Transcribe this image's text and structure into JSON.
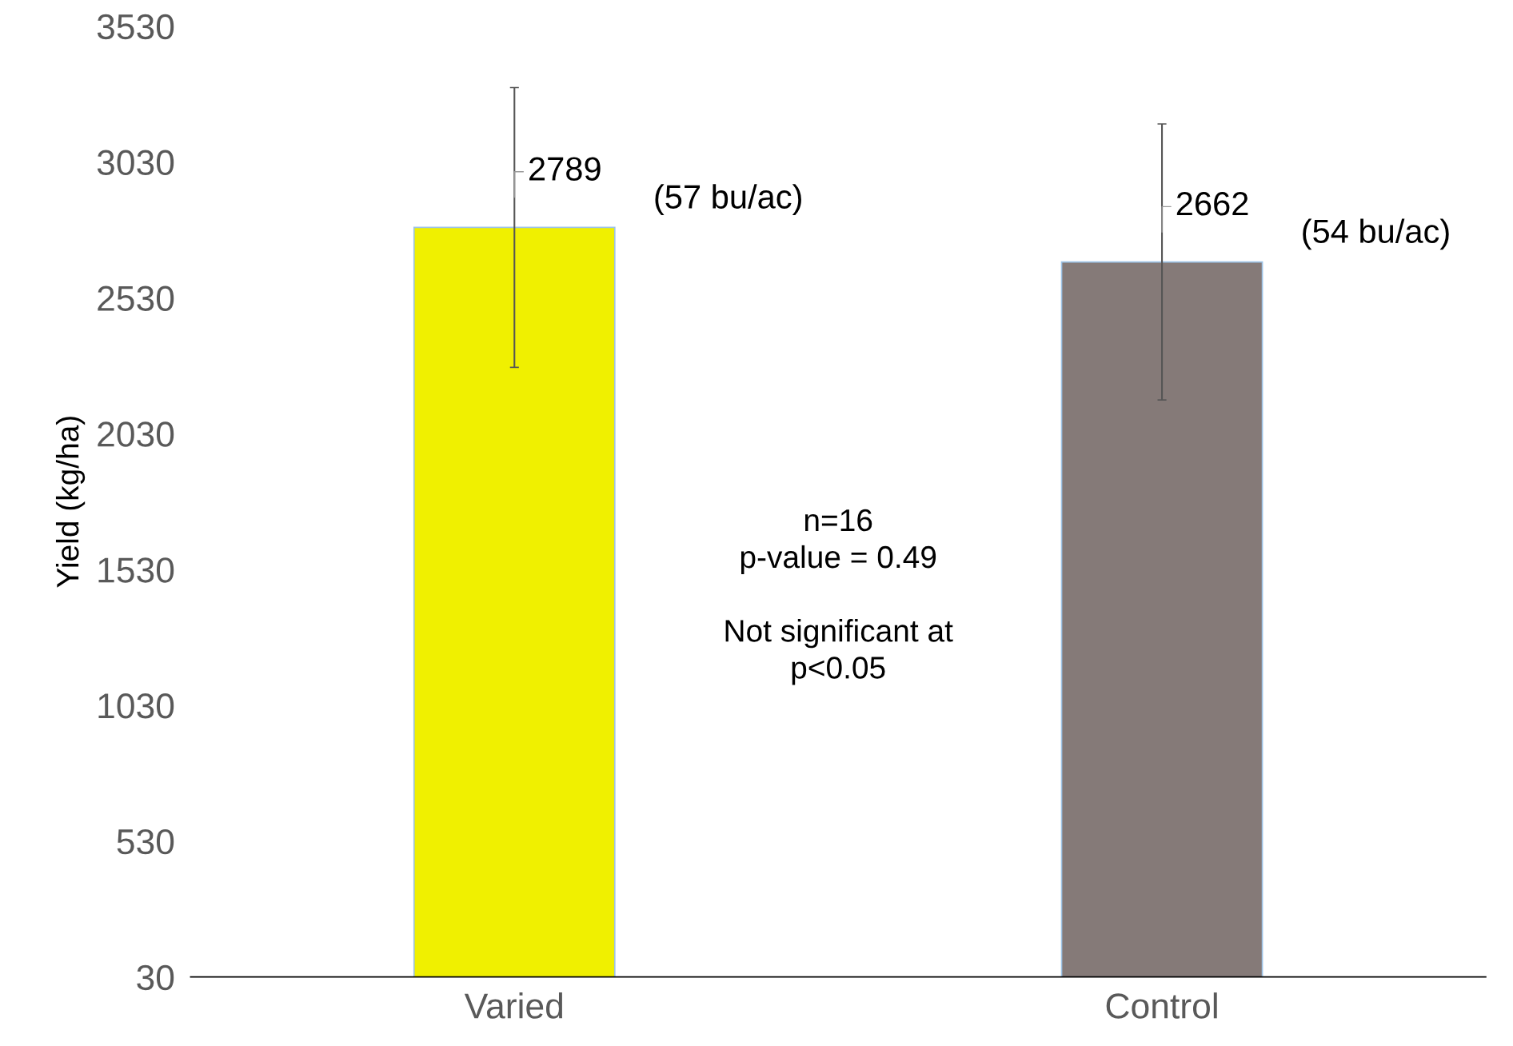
{
  "chart_data": {
    "type": "bar",
    "ylabel": "Yield (kg/ha)",
    "categories": [
      "Varied",
      "Control"
    ],
    "values": [
      2789,
      2662
    ],
    "colors": [
      "#f0f000",
      "#857a78"
    ],
    "errors": [
      515,
      508
    ],
    "value_labels": [
      "2789",
      "2662"
    ],
    "ylim": [
      30,
      3530
    ],
    "yticks": [
      30,
      530,
      1030,
      1530,
      2030,
      2530,
      3030,
      3530
    ],
    "grid": false,
    "annotations": [
      "(57 bu/ac)",
      "(54 bu/ac)",
      "n=16\np-value = 0.49\n\nNot significant at\np<0.05"
    ]
  }
}
